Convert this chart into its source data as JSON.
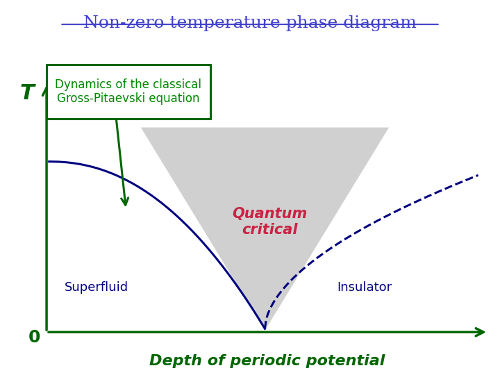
{
  "title": "Non-zero temperature phase diagram",
  "title_color": "#4040cc",
  "title_fontsize": 18,
  "title_underline": true,
  "box_text": "Dynamics of the classical\nGross-Pitaevski equation",
  "box_text_color": "#008800",
  "box_border_color": "#006600",
  "quantum_critical_text": "Quantum\ncritical",
  "quantum_critical_color": "#cc2244",
  "superfluid_label": "Superfluid",
  "insulator_label": "Insulator",
  "label_color": "#000080",
  "axis_color": "#006600",
  "T_label": "T",
  "T_label_color": "#006600",
  "zero_label": "0",
  "zero_label_color": "#006600",
  "xlabel": "Depth of periodic potential",
  "xlabel_color": "#006600",
  "xlabel_italic": true,
  "xlabel_bold": true,
  "background_color": "#ffffff",
  "gray_region_color": "#c8c8c8",
  "gray_region_alpha": 0.85,
  "superfluid_line_color": "#000080",
  "dashed_line_color": "#000080",
  "arrow_color": "#006600"
}
